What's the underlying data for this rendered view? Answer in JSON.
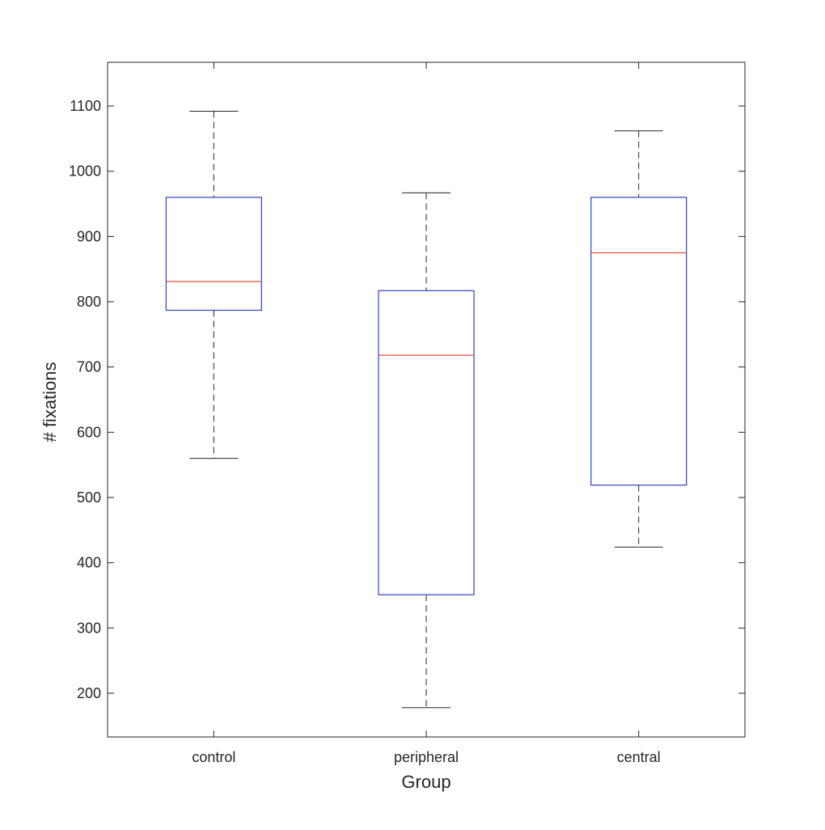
{
  "chart_data": {
    "type": "box",
    "title": "",
    "xlabel": "Group",
    "ylabel": "# fixations",
    "ylim": [
      133,
      1167
    ],
    "yticks": [
      200,
      300,
      400,
      500,
      600,
      700,
      800,
      900,
      1000,
      1100
    ],
    "yticklabels": [
      "200",
      "300",
      "400",
      "500",
      "600",
      "700",
      "800",
      "900",
      "1000",
      "1100"
    ],
    "categories": [
      "control",
      "peripheral",
      "central"
    ],
    "boxes": [
      {
        "whisker_low": 560,
        "q1": 787,
        "median": 831,
        "q3": 960,
        "whisker_high": 1092
      },
      {
        "whisker_low": 178,
        "q1": 351,
        "median": 718,
        "q3": 817,
        "whisker_high": 967
      },
      {
        "whisker_low": 424,
        "q1": 519,
        "median": 875,
        "q3": 960,
        "whisker_high": 1062
      }
    ],
    "grid": false,
    "colors": {
      "box": "#3040c0",
      "median": "#e05040",
      "whisker": "#262626",
      "axis": "#262626"
    }
  }
}
